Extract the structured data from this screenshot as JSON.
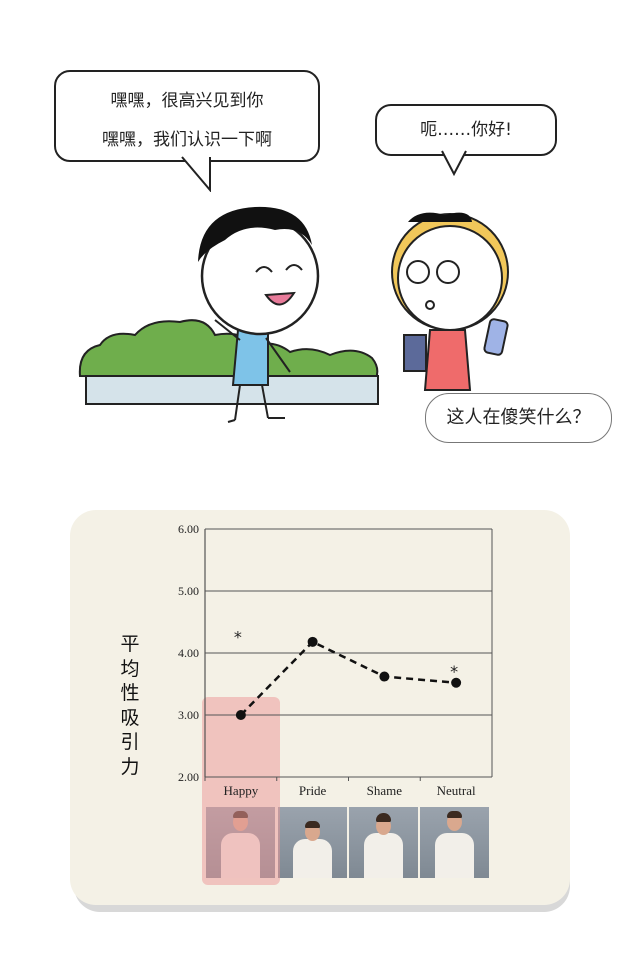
{
  "comic": {
    "boy_bubble": {
      "line1": "嘿嘿，很高兴见到你",
      "line2": "嘿嘿，我们认识一下啊"
    },
    "girl_bubble": "呃……你好!",
    "girl_thought": "这人在傻笑什么？"
  },
  "chart_data": {
    "type": "line",
    "title": "",
    "xlabel": "",
    "ylabel": "平均性吸引力",
    "categories": [
      "Happy",
      "Pride",
      "Shame",
      "Neutral"
    ],
    "values": [
      3.0,
      4.18,
      3.62,
      3.52
    ],
    "ylim": [
      2.0,
      6.0
    ],
    "yticks": [
      "2.00",
      "3.00",
      "4.00",
      "5.00",
      "6.00"
    ],
    "grid": true,
    "line_style": "dashed",
    "significance_marks": [
      {
        "category": "Happy",
        "label": "*"
      },
      {
        "category": "Neutral",
        "label": "*"
      }
    ],
    "highlighted_category": "Happy",
    "highlight_color": "#eb9696"
  }
}
